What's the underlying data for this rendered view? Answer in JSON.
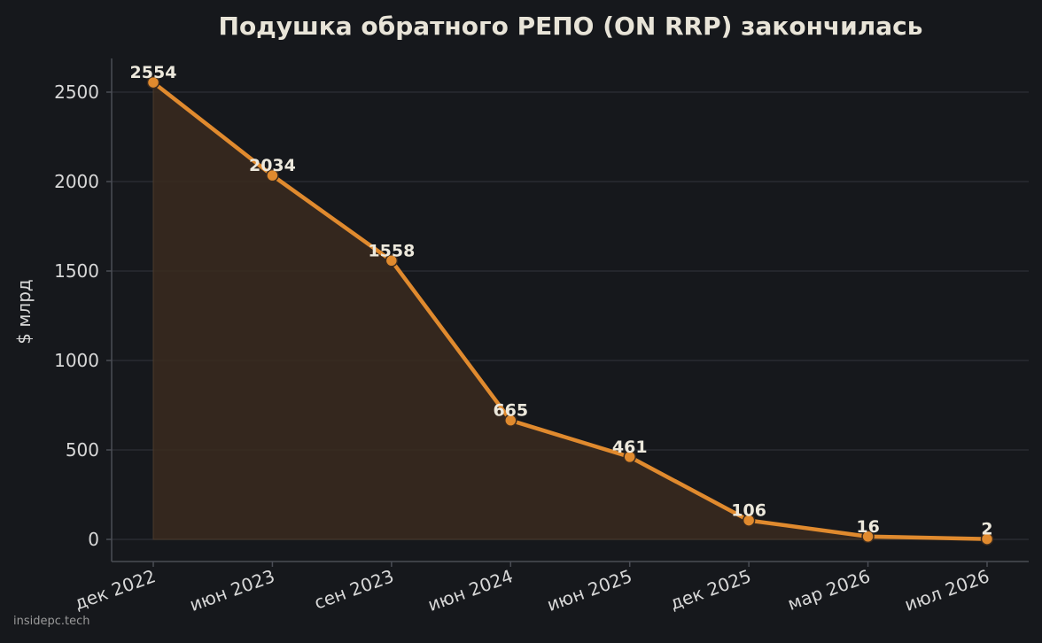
{
  "colors": {
    "background": "#16181c",
    "line": "#e08a2e",
    "fill": "#3a2a1e",
    "grid": "#2c2f36",
    "axis": "#4a4d55",
    "text": "#d8d8d8"
  },
  "watermark": "insidepc.tech",
  "chart_data": {
    "type": "line",
    "title": "Подушка обратного РЕПО (ON RRP) закончилась",
    "xlabel": "",
    "ylabel": "$ млрд",
    "categories": [
      "дек 2022",
      "июн 2023",
      "сен 2023",
      "июн 2024",
      "июн 2025",
      "дек 2025",
      "мар 2026",
      "июл 2026"
    ],
    "values": [
      2554,
      2034,
      1558,
      665,
      461,
      106,
      16,
      2
    ],
    "yticks": [
      0,
      500,
      1000,
      1500,
      2000,
      2500
    ],
    "ylim": [
      -125,
      2680
    ],
    "grid": true,
    "area_fill": true,
    "data_labels": true
  }
}
